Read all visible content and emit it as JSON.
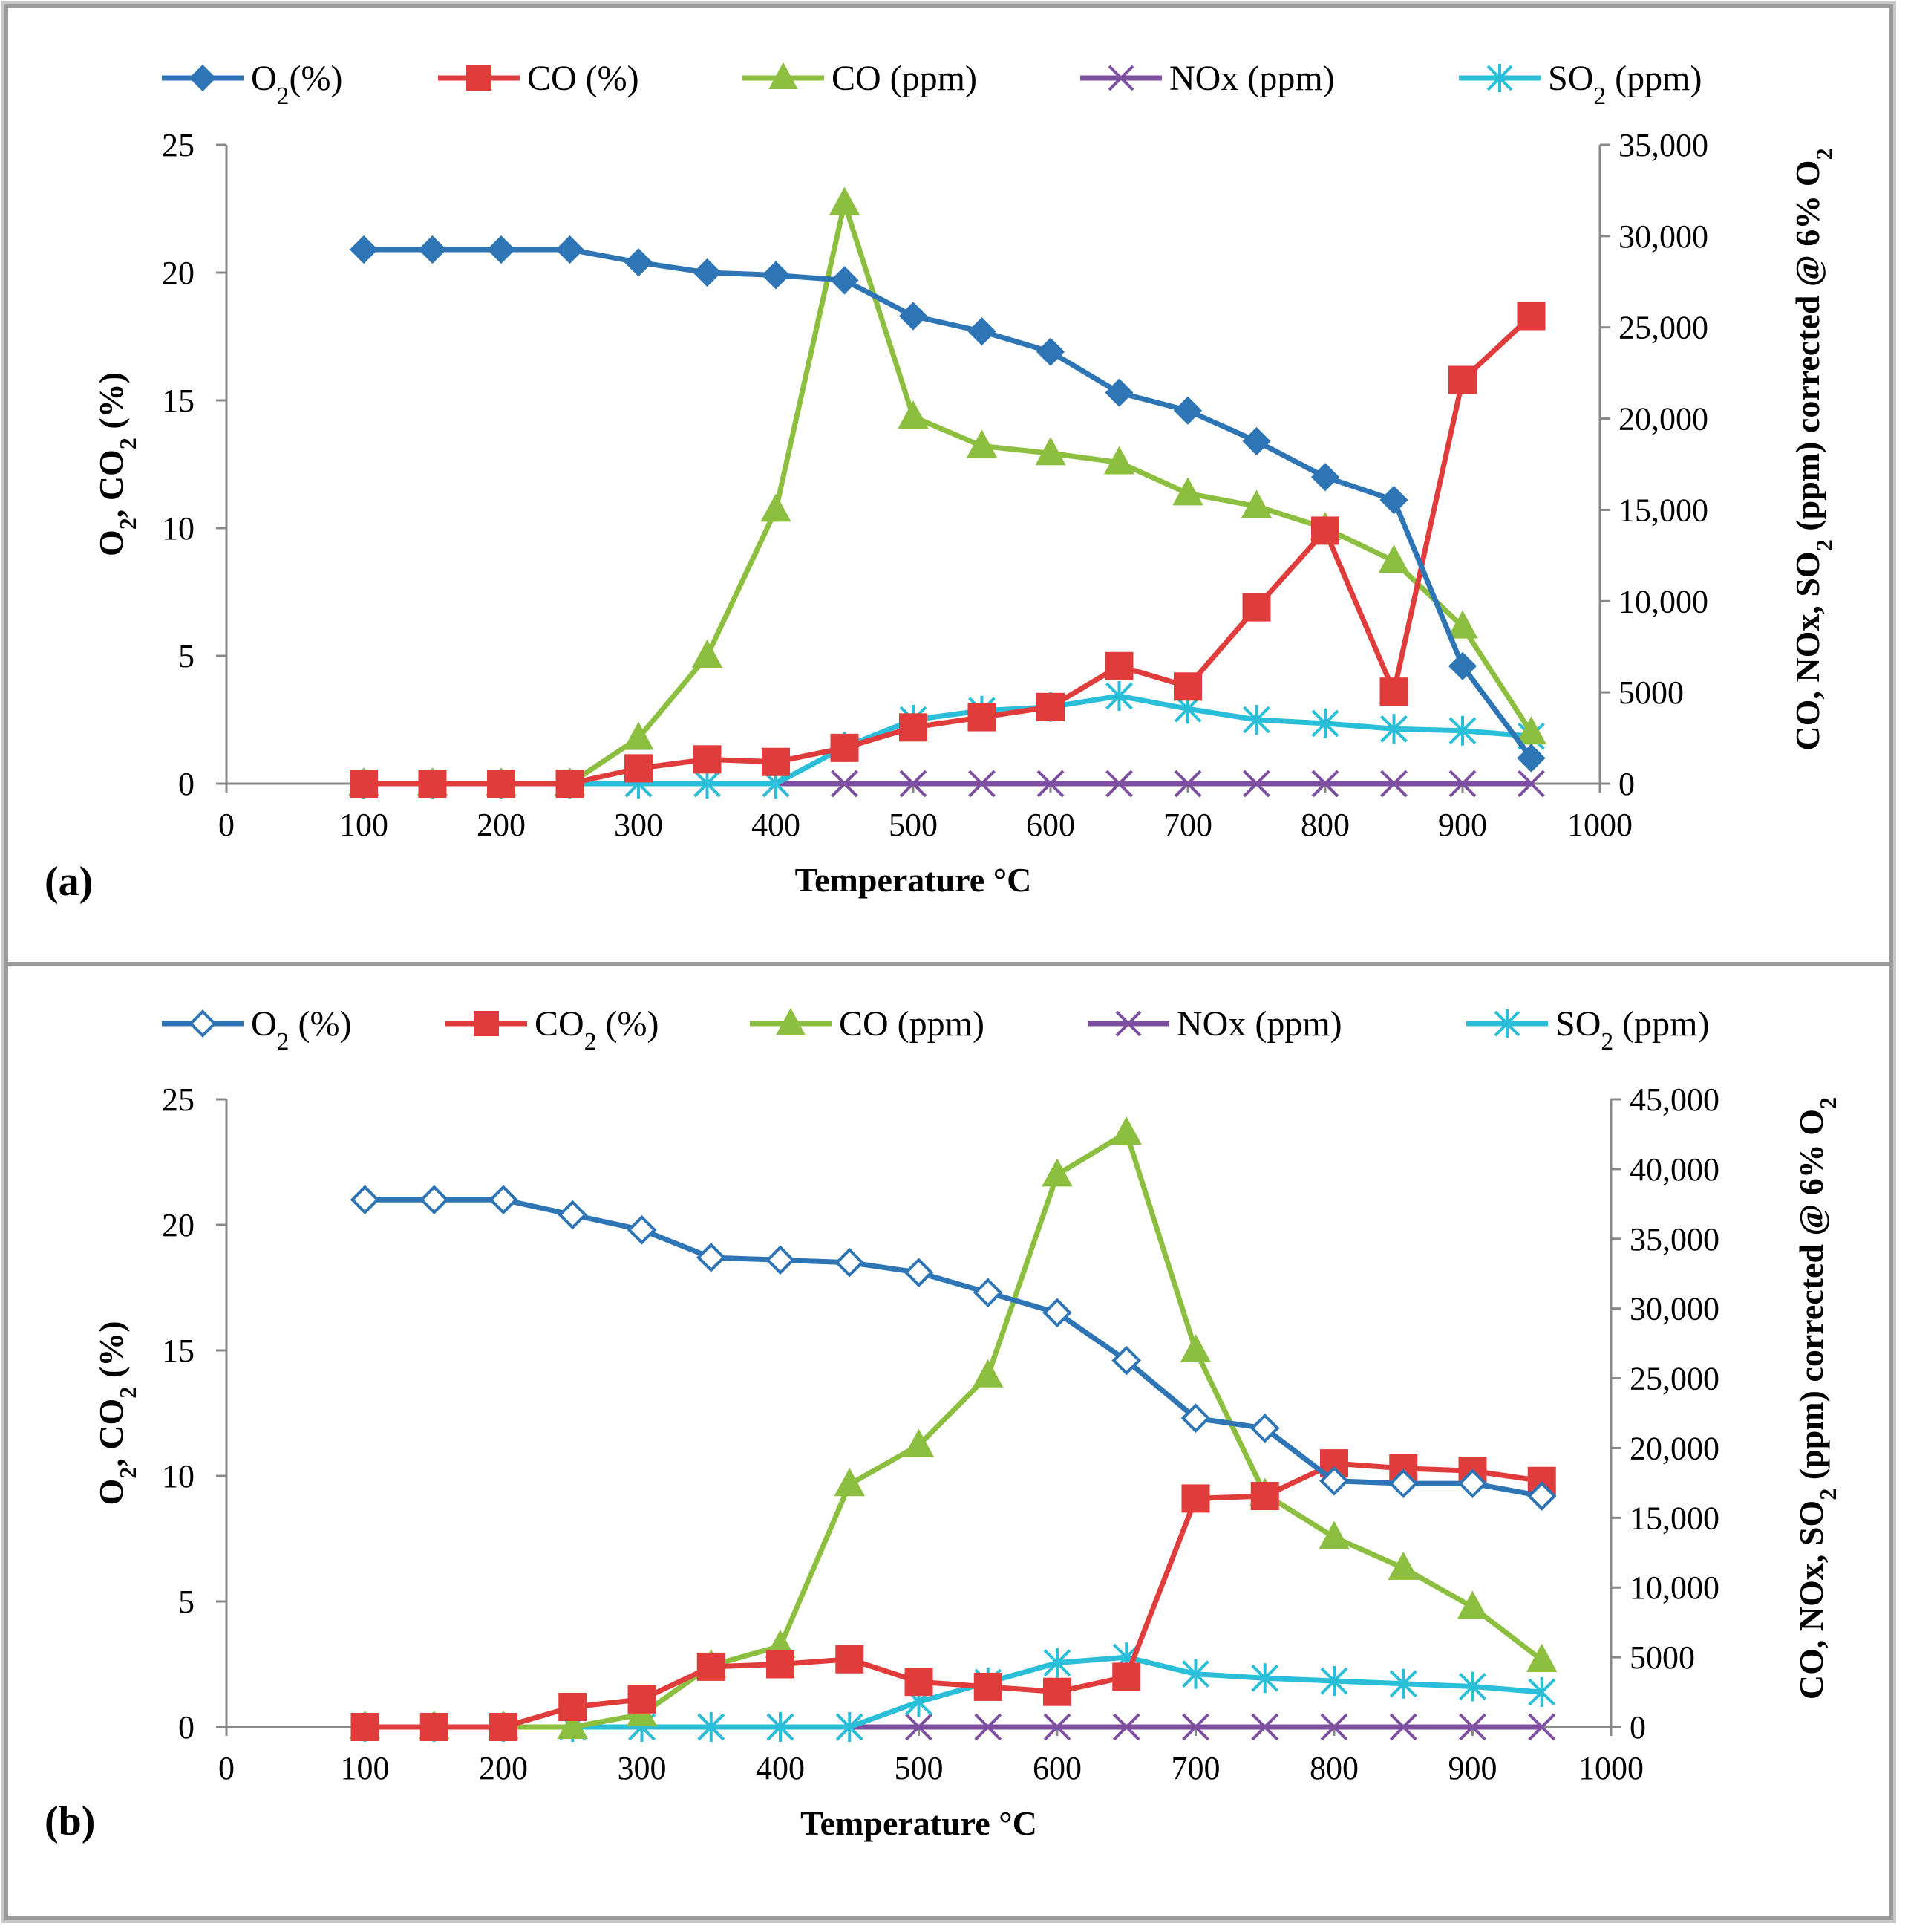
{
  "panel_colors": {
    "O2": "#2e75b6",
    "CO2": "#e03c3c",
    "CO": "#8cbf3f",
    "NOx": "#7e4fa0",
    "SO2": "#2bbed8"
  },
  "chart_data": [
    {
      "type": "line",
      "panel_label": "(a)",
      "xlabel": "Temperature °C",
      "ylabel_left": "O2, CO2 (%)",
      "ylabel_right": "CO, NOx, SO2 (ppm) corrected @ 6% O2",
      "xlim": [
        0,
        1000
      ],
      "ylim_left": [
        0,
        25
      ],
      "ylim_right": [
        0,
        35000
      ],
      "x_ticks": [
        "0",
        "100",
        "200",
        "300",
        "400",
        "500",
        "600",
        "700",
        "800",
        "900",
        "1000"
      ],
      "y_left_ticks": [
        "0",
        "5",
        "10",
        "15",
        "20",
        "25"
      ],
      "y_right_ticks": [
        "0",
        "5000",
        "10,000",
        "15,000",
        "20,000",
        "25,000",
        "30,000",
        "35,000"
      ],
      "x": [
        100,
        150,
        200,
        250,
        300,
        350,
        400,
        450,
        500,
        550,
        600,
        650,
        700,
        750,
        800,
        850,
        900,
        950
      ],
      "series": [
        {
          "key": "O2",
          "name": "O2(%)",
          "legend_label": "O₂(%)",
          "axis": "left",
          "marker": "diamond-filled",
          "values": [
            20.9,
            20.9,
            20.9,
            20.9,
            20.4,
            20.0,
            19.9,
            19.7,
            18.3,
            17.7,
            16.9,
            15.3,
            14.6,
            13.4,
            12.0,
            11.1,
            4.6,
            1.0
          ]
        },
        {
          "key": "CO2",
          "name": "CO (%)",
          "legend_label": "CO  (%)",
          "axis": "left",
          "marker": "square",
          "values": [
            0,
            0,
            0,
            0,
            0.6,
            0.95,
            0.85,
            1.4,
            2.2,
            2.6,
            3.0,
            4.6,
            3.8,
            6.9,
            9.9,
            3.6,
            15.8,
            18.3
          ]
        },
        {
          "key": "CO",
          "name": "CO (ppm)",
          "legend_label": "CO (ppm)",
          "axis": "right",
          "marker": "triangle",
          "values": [
            0,
            0,
            0,
            0,
            2500,
            7000,
            15000,
            31800,
            20100,
            18500,
            18100,
            17600,
            15900,
            15200,
            14000,
            12200,
            8600,
            2800
          ]
        },
        {
          "key": "NOx",
          "name": "NOx (ppm)",
          "legend_label": "NOx (ppm)",
          "axis": "right",
          "marker": "x",
          "values": [
            0,
            0,
            0,
            0,
            0,
            0,
            0,
            0,
            0,
            0,
            0,
            0,
            0,
            0,
            0,
            0,
            0,
            0
          ]
        },
        {
          "key": "SO2",
          "name": "SO2 (ppm)",
          "legend_label": "SO₂  (ppm)",
          "axis": "right",
          "marker": "asterisk",
          "values": [
            0,
            0,
            0,
            0,
            0,
            0,
            0,
            2000,
            3500,
            4000,
            4200,
            4800,
            4100,
            3500,
            3300,
            3000,
            2900,
            2600
          ]
        }
      ]
    },
    {
      "type": "line",
      "panel_label": "(b)",
      "xlabel": "Temperature °C",
      "ylabel_left": "O2, CO2 (%)",
      "ylabel_right": "CO, NOx, SO2 (ppm) corrected @ 6% O2",
      "xlim": [
        0,
        1000
      ],
      "ylim_left": [
        0,
        25
      ],
      "ylim_right": [
        0,
        45000
      ],
      "x_ticks": [
        "0",
        "100",
        "200",
        "300",
        "400",
        "500",
        "600",
        "700",
        "800",
        "900",
        "1000"
      ],
      "y_left_ticks": [
        "0",
        "5",
        "10",
        "15",
        "20",
        "25"
      ],
      "y_right_ticks": [
        "0",
        "5000",
        "10,000",
        "15,000",
        "20,000",
        "25,000",
        "30,000",
        "35,000",
        "40,000",
        "45,000"
      ],
      "x": [
        100,
        150,
        200,
        250,
        300,
        350,
        400,
        450,
        500,
        550,
        600,
        650,
        700,
        750,
        800,
        850,
        900,
        950
      ],
      "series": [
        {
          "key": "O2",
          "name": "O2 (%)",
          "legend_label": "O₂ (%)",
          "axis": "left",
          "marker": "diamond-open",
          "values": [
            21.0,
            21.0,
            21.0,
            20.4,
            19.8,
            18.7,
            18.6,
            18.5,
            18.1,
            17.3,
            16.5,
            14.6,
            12.3,
            11.9,
            9.8,
            9.7,
            9.7,
            9.2
          ]
        },
        {
          "key": "CO2",
          "name": "CO2 (%)",
          "legend_label": "CO₂  (%)",
          "axis": "left",
          "marker": "square",
          "values": [
            0,
            0,
            0,
            0.8,
            1.1,
            2.4,
            2.5,
            2.7,
            1.8,
            1.6,
            1.4,
            2.0,
            9.1,
            9.2,
            10.5,
            10.3,
            10.2,
            9.8
          ]
        },
        {
          "key": "CO",
          "name": "CO (ppm)",
          "legend_label": "CO (ppm)",
          "axis": "right",
          "marker": "triangle",
          "values": [
            0,
            0,
            0,
            0,
            900,
            4400,
            5800,
            17400,
            20200,
            25200,
            39600,
            42600,
            27000,
            16700,
            13600,
            11400,
            8600,
            4800
          ]
        },
        {
          "key": "NOx",
          "name": "NOx (ppm)",
          "legend_label": "NOx (ppm)",
          "axis": "right",
          "marker": "x",
          "values": [
            0,
            0,
            0,
            0,
            0,
            0,
            0,
            0,
            0,
            0,
            0,
            0,
            0,
            0,
            0,
            0,
            0,
            0
          ]
        },
        {
          "key": "SO2",
          "name": "SO2 (ppm)",
          "legend_label": "SO₂ (ppm)",
          "axis": "right",
          "marker": "asterisk",
          "values": [
            0,
            0,
            0,
            0,
            0,
            0,
            0,
            0,
            1800,
            3200,
            4600,
            5000,
            3800,
            3500,
            3300,
            3100,
            2900,
            2500
          ]
        }
      ]
    }
  ]
}
